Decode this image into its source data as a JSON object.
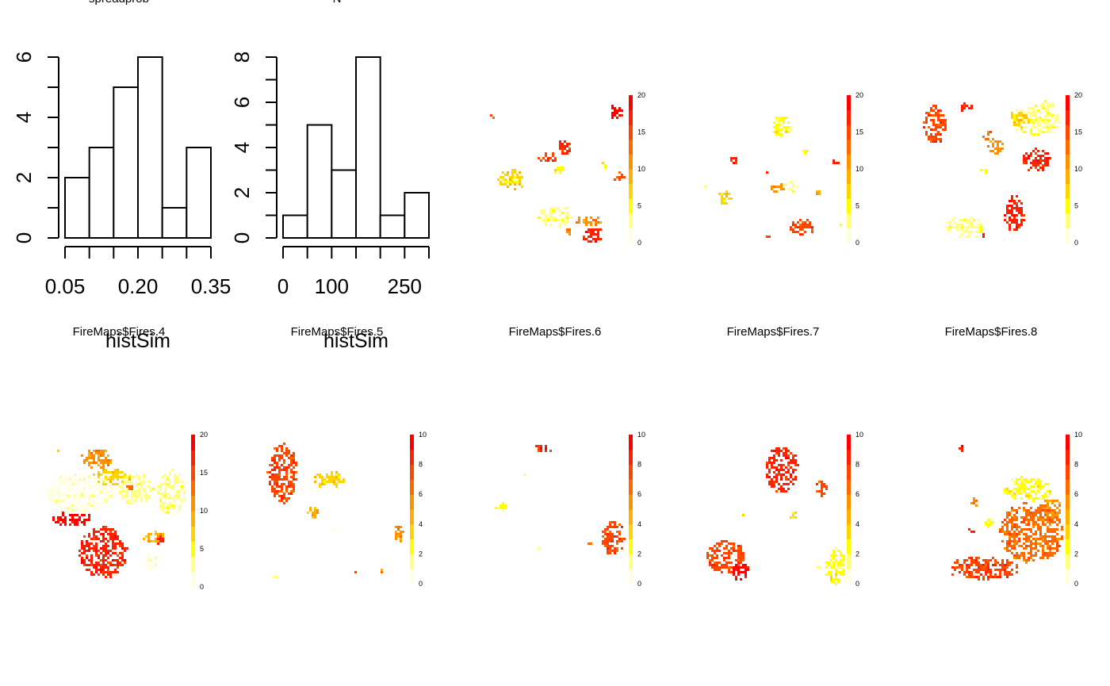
{
  "chart_data": [
    {
      "type": "bar",
      "panel": "histogram-spreadprob",
      "title": "spreadprob",
      "xlabel": "",
      "ylabel": "",
      "breaks": [
        0.05,
        0.1,
        0.15,
        0.2,
        0.25,
        0.3,
        0.35
      ],
      "values": [
        2,
        3,
        5,
        6,
        1,
        3
      ],
      "xticks": [
        "0.05",
        "0.20",
        "0.35"
      ],
      "yticks": [
        "0",
        "2",
        "4",
        "6"
      ],
      "ylim": [
        0,
        6
      ]
    },
    {
      "type": "bar",
      "panel": "histogram-n",
      "title": "N",
      "xlabel": "",
      "ylabel": "",
      "breaks": [
        0,
        50,
        100,
        150,
        200,
        250,
        300
      ],
      "values": [
        1,
        5,
        3,
        8,
        1,
        2
      ],
      "xticks": [
        "0",
        "100",
        "250"
      ],
      "yticks": [
        "0",
        "2",
        "4",
        "6",
        "8"
      ],
      "ylim": [
        0,
        8
      ]
    },
    {
      "type": "heatmap",
      "panel": "fire-map-1",
      "title": "",
      "legend_ticks": [
        "0",
        "5",
        "10",
        "15",
        "20"
      ],
      "zlim": [
        0,
        20
      ]
    },
    {
      "type": "heatmap",
      "panel": "fire-map-2",
      "title": "",
      "legend_ticks": [
        "0",
        "5",
        "10",
        "15",
        "20"
      ],
      "zlim": [
        0,
        20
      ]
    },
    {
      "type": "heatmap",
      "panel": "fire-map-3",
      "title": "",
      "legend_ticks": [
        "0",
        "5",
        "10",
        "15",
        "20"
      ],
      "zlim": [
        0,
        20
      ]
    },
    {
      "type": "heatmap",
      "panel": "fire-map-4",
      "title": "FireMaps$Fires.4",
      "legend_ticks": [
        "0",
        "5",
        "10",
        "15",
        "20"
      ],
      "zlim": [
        0,
        20
      ]
    },
    {
      "type": "heatmap",
      "panel": "fire-map-5",
      "title": "FireMaps$Fires.5",
      "legend_ticks": [
        "0",
        "2",
        "4",
        "6",
        "8",
        "10"
      ],
      "zlim": [
        0,
        10
      ]
    },
    {
      "type": "heatmap",
      "panel": "fire-map-6",
      "title": "FireMaps$Fires.6",
      "legend_ticks": [
        "0",
        "2",
        "4",
        "6",
        "8",
        "10"
      ],
      "zlim": [
        0,
        10
      ]
    },
    {
      "type": "heatmap",
      "panel": "fire-map-7",
      "title": "FireMaps$Fires.7",
      "legend_ticks": [
        "0",
        "2",
        "4",
        "6",
        "8",
        "10"
      ],
      "zlim": [
        0,
        10
      ]
    },
    {
      "type": "heatmap",
      "panel": "fire-map-8",
      "title": "FireMaps$Fires.8",
      "legend_ticks": [
        "0",
        "2",
        "4",
        "6",
        "8",
        "10"
      ],
      "zlim": [
        0,
        10
      ]
    }
  ],
  "overlap_text": [
    "histSim",
    "histSim"
  ],
  "colors": {
    "axis": "#000000",
    "bar_fill": "#ffffff",
    "legend_ramp": [
      "#ffffe0",
      "#ffff80",
      "#ffff00",
      "#ffd400",
      "#ffb000",
      "#ff9000",
      "#ff6a00",
      "#ff4500",
      "#ff2000",
      "#ff0000"
    ]
  }
}
